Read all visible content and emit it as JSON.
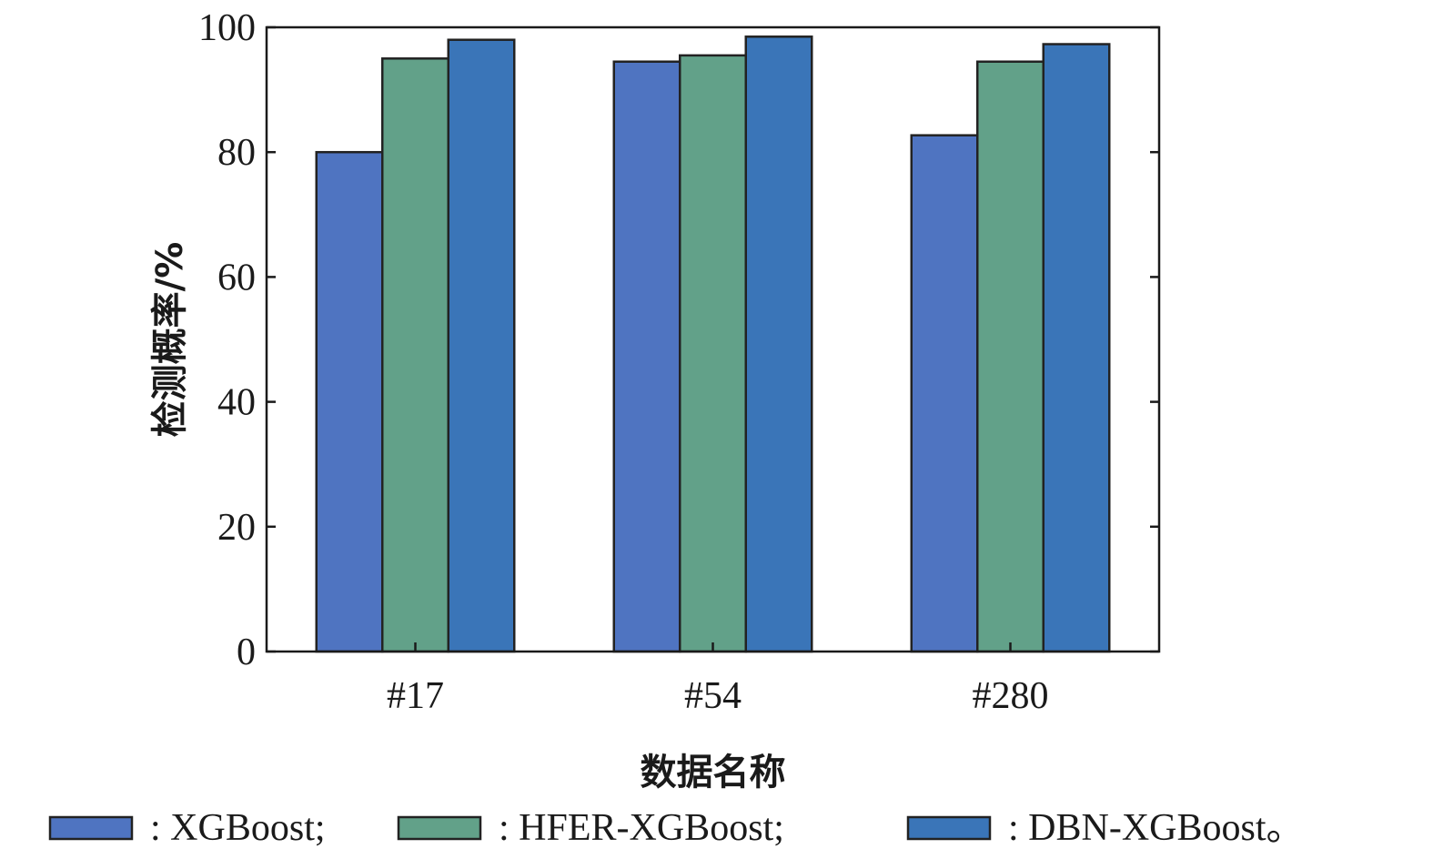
{
  "chart_data": {
    "type": "bar",
    "categories": [
      "#17",
      "#54",
      "#280"
    ],
    "series": [
      {
        "name": ": XGBoost;",
        "values": [
          80,
          94.5,
          82.7
        ],
        "color": "#4f74c1"
      },
      {
        "name": ": HFER-XGBoost;",
        "values": [
          95,
          95.5,
          94.5
        ],
        "color": "#62a189"
      },
      {
        "name": ": DBN-XGBoost。",
        "values": [
          98,
          98.5,
          97.3
        ],
        "color": "#3a75b8"
      }
    ],
    "title": "",
    "xlabel": "数据名称",
    "ylabel": "检测概率/%",
    "ylim": [
      0,
      100
    ],
    "yticks": [
      "0",
      "20",
      "40",
      "60",
      "80",
      "100"
    ],
    "grid": false,
    "legend_position": "bottom"
  }
}
